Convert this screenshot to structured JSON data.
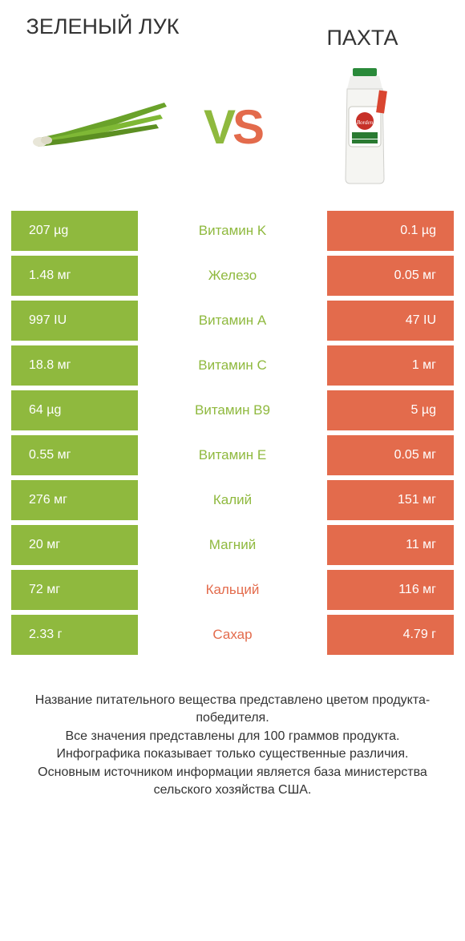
{
  "colors": {
    "green": "#8fb93e",
    "orange": "#e36b4c",
    "mid_green": "#8fb93e",
    "mid_orange": "#e36b4c"
  },
  "titles": {
    "left": "ЗЕЛЕНЫЙ ЛУК",
    "right": "ПАХТА"
  },
  "vs": {
    "v": "V",
    "s": "S"
  },
  "rows": [
    {
      "left": "207 µg",
      "mid": "Витамин K",
      "right": "0.1 µg",
      "winner": "left"
    },
    {
      "left": "1.48 мг",
      "mid": "Железо",
      "right": "0.05 мг",
      "winner": "left"
    },
    {
      "left": "997 IU",
      "mid": "Витамин A",
      "right": "47 IU",
      "winner": "left"
    },
    {
      "left": "18.8 мг",
      "mid": "Витамин C",
      "right": "1 мг",
      "winner": "left"
    },
    {
      "left": "64 µg",
      "mid": "Витамин B9",
      "right": "5 µg",
      "winner": "left"
    },
    {
      "left": "0.55 мг",
      "mid": "Витамин E",
      "right": "0.05 мг",
      "winner": "left"
    },
    {
      "left": "276 мг",
      "mid": "Калий",
      "right": "151 мг",
      "winner": "left"
    },
    {
      "left": "20 мг",
      "mid": "Магний",
      "right": "11 мг",
      "winner": "left"
    },
    {
      "left": "72 мг",
      "mid": "Кальций",
      "right": "116 мг",
      "winner": "right"
    },
    {
      "left": "2.33 г",
      "mid": "Сахар",
      "right": "4.79 г",
      "winner": "right"
    }
  ],
  "footer": [
    "Название питательного вещества представлено цветом продукта-победителя.",
    "Все значения представлены для 100 граммов продукта.",
    "Инфографика показывает только существенные различия.",
    "Основным источником информации является база министерства сельского хозяйства США."
  ]
}
